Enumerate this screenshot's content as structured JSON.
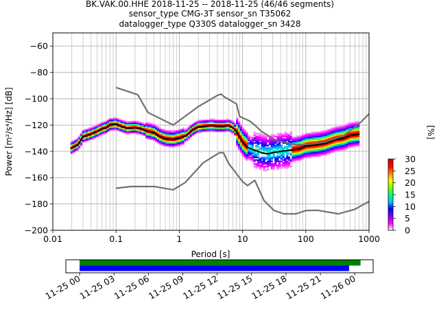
{
  "chart_data": {
    "type": "heatmap",
    "title_lines": [
      "BK.VAK.00.HHE   2018-11-25 -- 2018-11-25  (46/46 segments)",
      "sensor_type CMG-3T sensor_sn T35062",
      "datalogger_type Q330S datalogger_sn 3428"
    ],
    "xlabel": "Period [s]",
    "ylabel": "Power [m²/s⁴/Hz] [dB]",
    "x_scale": "log",
    "xlim": [
      0.01,
      1000
    ],
    "ylim": [
      -200,
      -50
    ],
    "x_ticks": [
      {
        "value": 0.01,
        "label": "0.01"
      },
      {
        "value": 0.1,
        "label": "0.1"
      },
      {
        "value": 1,
        "label": "1"
      },
      {
        "value": 10,
        "label": "10"
      },
      {
        "value": 100,
        "label": "100"
      },
      {
        "value": 1000,
        "label": "1000"
      }
    ],
    "y_ticks": [
      {
        "value": -60,
        "label": "−60"
      },
      {
        "value": -80,
        "label": "−80"
      },
      {
        "value": -100,
        "label": "−100"
      },
      {
        "value": -120,
        "label": "−120"
      },
      {
        "value": -140,
        "label": "−140"
      },
      {
        "value": -160,
        "label": "−160"
      },
      {
        "value": -180,
        "label": "−180"
      },
      {
        "value": -200,
        "label": "−200"
      }
    ],
    "grid": true,
    "colorbar": {
      "label": "[%]",
      "range": [
        0,
        30
      ],
      "ticks": [
        "0",
        "5",
        "10",
        "15",
        "20",
        "25",
        "30"
      ],
      "colormap": [
        "#ffffff",
        "#ff00ff",
        "#8000ff",
        "#0000ff",
        "#00c8ff",
        "#00ff80",
        "#80ff00",
        "#ffff00",
        "#ff8000",
        "#ff0000",
        "#c80000"
      ]
    },
    "series": [
      {
        "role": "mean",
        "color": "#000000",
        "points": [
          [
            0.019,
            -138
          ],
          [
            0.025,
            -135
          ],
          [
            0.03,
            -129
          ],
          [
            0.04,
            -127
          ],
          [
            0.05,
            -125
          ],
          [
            0.06,
            -123
          ],
          [
            0.07,
            -122
          ],
          [
            0.08,
            -120
          ],
          [
            0.1,
            -119.5
          ],
          [
            0.12,
            -121
          ],
          [
            0.15,
            -122.5
          ],
          [
            0.2,
            -122
          ],
          [
            0.25,
            -123
          ],
          [
            0.3,
            -124.5
          ],
          [
            0.4,
            -126
          ],
          [
            0.5,
            -129
          ],
          [
            0.6,
            -130.5
          ],
          [
            0.8,
            -131
          ],
          [
            1.0,
            -130
          ],
          [
            1.3,
            -128
          ],
          [
            1.6,
            -124
          ],
          [
            2.0,
            -121.5
          ],
          [
            2.5,
            -121
          ],
          [
            3.2,
            -120.5
          ],
          [
            4.0,
            -121
          ],
          [
            5.0,
            -121
          ],
          [
            6.0,
            -120.5
          ],
          [
            7.0,
            -122
          ],
          [
            8.0,
            -125
          ],
          [
            10,
            -133
          ],
          [
            12,
            -137
          ],
          [
            15,
            -139
          ],
          [
            20,
            -141
          ],
          [
            25,
            -142
          ],
          [
            30,
            -141
          ],
          [
            40,
            -140
          ],
          [
            60,
            -139
          ],
          [
            80,
            -138
          ],
          [
            100,
            -136
          ],
          [
            150,
            -135
          ],
          [
            200,
            -134
          ],
          [
            300,
            -131
          ],
          [
            400,
            -130
          ],
          [
            500,
            -128
          ],
          [
            700,
            -127
          ]
        ]
      },
      {
        "role": "new-high-noise-model",
        "color": "#707070",
        "points": [
          [
            0.1,
            -91.5
          ],
          [
            0.22,
            -97
          ],
          [
            0.32,
            -110.5
          ],
          [
            0.8,
            -120
          ],
          [
            2.0,
            -106
          ],
          [
            4.0,
            -97.5
          ],
          [
            4.6,
            -96.5
          ],
          [
            5.1,
            -98.5
          ],
          [
            8.0,
            -104
          ],
          [
            9.0,
            -113.5
          ],
          [
            13,
            -117
          ],
          [
            15.6,
            -120
          ],
          [
            20,
            -125
          ],
          [
            35,
            -132
          ],
          [
            70,
            -135
          ],
          [
            120,
            -134.5
          ],
          [
            200,
            -133
          ],
          [
            400,
            -128
          ],
          [
            700,
            -119
          ],
          [
            1000,
            -111.5
          ]
        ]
      },
      {
        "role": "new-low-noise-model",
        "color": "#707070",
        "points": [
          [
            0.1,
            -168
          ],
          [
            0.17,
            -166.7
          ],
          [
            0.4,
            -166.7
          ],
          [
            0.8,
            -169.2
          ],
          [
            1.24,
            -163.7
          ],
          [
            2.4,
            -148.6
          ],
          [
            4.3,
            -141.1
          ],
          [
            5.0,
            -141.1
          ],
          [
            6.0,
            -149
          ],
          [
            10,
            -163
          ],
          [
            12,
            -166
          ],
          [
            15.6,
            -162
          ],
          [
            21.9,
            -177.5
          ],
          [
            31.6,
            -185
          ],
          [
            45,
            -187.5
          ],
          [
            70,
            -187.5
          ],
          [
            100,
            -185
          ],
          [
            154,
            -184.8
          ],
          [
            328,
            -187.5
          ],
          [
            600,
            -184
          ],
          [
            1000,
            -178
          ]
        ]
      }
    ],
    "time_coverage": {
      "ticks": [
        "11-25 00",
        "11-25 03",
        "11-25 06",
        "11-25 09",
        "11-25 12",
        "11-25 15",
        "11-25 18",
        "11-25 21",
        "11-26 00"
      ],
      "tick_hours": [
        0,
        3,
        6,
        9,
        12,
        15,
        18,
        21,
        24
      ],
      "range_hours": [
        -1.2,
        25.6
      ],
      "bars": [
        {
          "role": "data",
          "color": "#008000",
          "start_hours": 0,
          "end_hours": 24.5
        },
        {
          "role": "psd",
          "color": "#0000ff",
          "start_hours": 0,
          "end_hours": 23.5
        }
      ]
    }
  }
}
